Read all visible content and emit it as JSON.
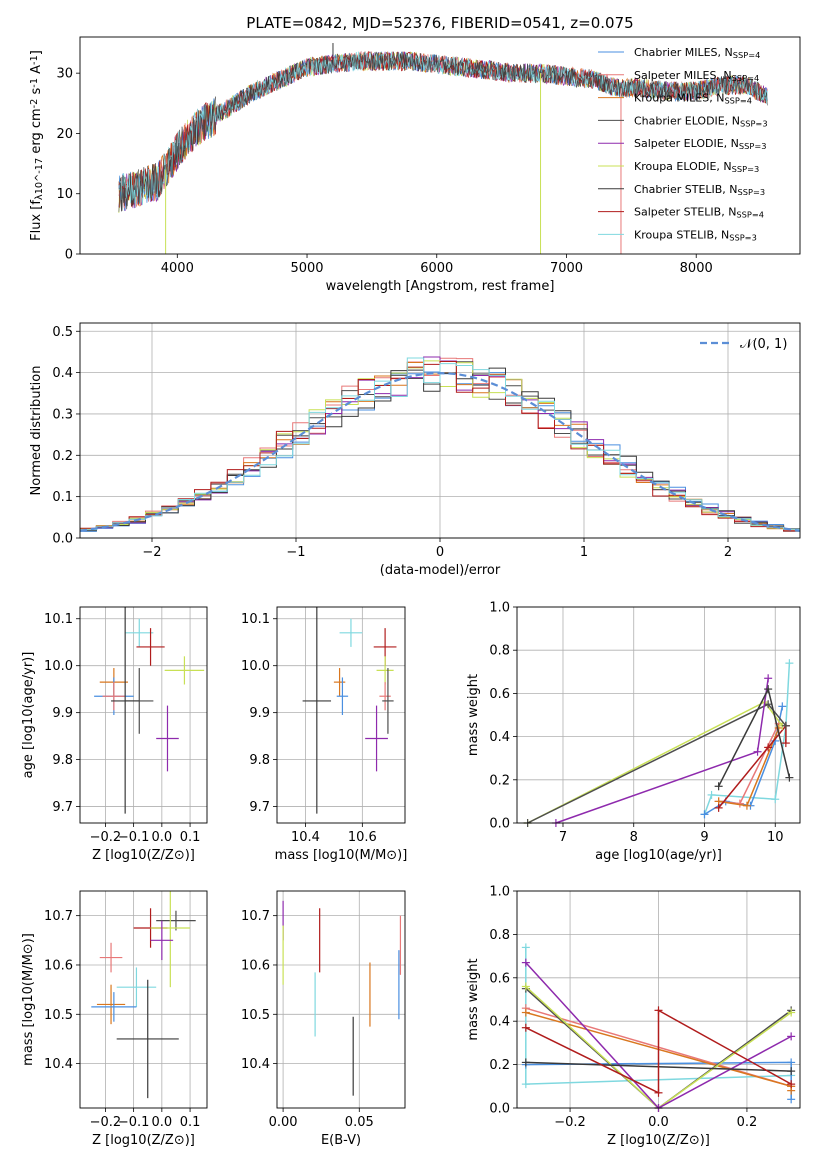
{
  "figure": {
    "title": "PLATE=0842, MJD=52376, FIBERID=0541, z=0.075"
  },
  "colors": {
    "Chabrier MILES": "#4a8fe0",
    "Salpeter MILES": "#e87878",
    "Kroupa MILES": "#d9771f",
    "Chabrier ELODIE": "#4e4e4e",
    "Salpeter ELODIE": "#8e2aad",
    "Kroupa ELODIE": "#c8e055",
    "Chabrier STELIB": "#3a3a3a",
    "Salpeter STELIB": "#b01c1c",
    "Kroupa STELIB": "#7fd8df"
  },
  "chart_data": [
    {
      "id": "spectrum",
      "type": "line",
      "title": "PLATE=0842, MJD=52376, FIBERID=0541, z=0.075",
      "xlabel": "wavelength [Angstrom, rest frame]",
      "ylabel": "Flux [f_λ10^-17 erg cm^-2 s^-1 A^-1]",
      "xlim": [
        3250,
        8800
      ],
      "ylim": [
        0,
        36
      ],
      "xticks": [
        4000,
        5000,
        6000,
        7000,
        8000
      ],
      "yticks": [
        0,
        10,
        20,
        30
      ],
      "grid": false,
      "legend_position": "upper right",
      "legend": [
        {
          "name": "Chabrier MILES",
          "nssp": "4"
        },
        {
          "name": "Salpeter MILES",
          "nssp": "4"
        },
        {
          "name": "Kroupa MILES",
          "nssp": "4"
        },
        {
          "name": "Chabrier ELODIE",
          "nssp": "3"
        },
        {
          "name": "Salpeter ELODIE",
          "nssp": "3"
        },
        {
          "name": "Kroupa ELODIE",
          "nssp": "3"
        },
        {
          "name": "Chabrier STELIB",
          "nssp": "3"
        },
        {
          "name": "Salpeter STELIB",
          "nssp": "4"
        },
        {
          "name": "Kroupa STELIB",
          "nssp": "3"
        }
      ],
      "continuum": {
        "x": [
          3550,
          3700,
          3850,
          4000,
          4150,
          4300,
          4450,
          4600,
          4800,
          5000,
          5200,
          5400,
          5600,
          5800,
          6000,
          6200,
          6400,
          6600,
          6800,
          7000,
          7200,
          7400,
          7600,
          7800,
          8000,
          8200,
          8400,
          8550
        ],
        "y": [
          10,
          11,
          12,
          17,
          21,
          23,
          25,
          27,
          29,
          31,
          31.5,
          32,
          32,
          32,
          31.5,
          31,
          30.5,
          30,
          30,
          29.5,
          29,
          27.5,
          27.5,
          27,
          27,
          28,
          28,
          26
        ]
      },
      "spikes": [
        {
          "x": 5200,
          "y": 35
        },
        {
          "x": 3910,
          "y": 0
        },
        {
          "x": 6800,
          "y": 0
        },
        {
          "x": 7420,
          "y": 0
        }
      ]
    },
    {
      "id": "residuals",
      "type": "line",
      "xlabel": "(data-model)/error",
      "ylabel": "Normed distribution",
      "xlim": [
        -2.5,
        2.5
      ],
      "ylim": [
        0,
        0.52
      ],
      "xticks": [
        -2,
        -1,
        0,
        1,
        2
      ],
      "yticks": [
        0.0,
        0.1,
        0.2,
        0.3,
        0.4,
        0.5
      ],
      "grid": true,
      "legend_position": "upper right",
      "reference_label": "𝒩(0, 1)",
      "histogram_range": [
        -2.5,
        2.5
      ],
      "histogram_bin_count": 44,
      "histogram_spread": [
        0.05,
        -0.03,
        0.02,
        -0.04,
        0.03,
        -0.02,
        0.04,
        -0.05,
        0.0
      ]
    },
    {
      "id": "age-vs-Z",
      "type": "scatter",
      "xlabel": "Z [log10(Z/Z⊙)]",
      "ylabel": "age  [log10(age/yr)]",
      "xlim": [
        -0.29,
        0.16
      ],
      "ylim": [
        9.665,
        10.125
      ],
      "xticks": [
        -0.2,
        -0.1,
        0.0,
        0.1
      ],
      "yticks": [
        9.7,
        9.8,
        9.9,
        10.0,
        10.1
      ],
      "grid": true,
      "points": [
        {
          "series": "Kroupa STELIB",
          "x": -0.08,
          "xerr": 0.05,
          "y": 10.07,
          "yerr": 0.03
        },
        {
          "series": "Salpeter STELIB",
          "x": -0.04,
          "xerr": 0.05,
          "y": 10.04,
          "yerr": 0.04
        },
        {
          "series": "Kroupa ELODIE",
          "x": 0.08,
          "xerr": 0.07,
          "y": 9.99,
          "yerr": 0.03
        },
        {
          "series": "Kroupa MILES",
          "x": -0.17,
          "xerr": 0.05,
          "y": 9.965,
          "yerr": 0.03
        },
        {
          "series": "Chabrier MILES",
          "x": -0.17,
          "xerr": 0.07,
          "y": 9.935,
          "yerr": 0.04
        },
        {
          "series": "Salpeter MILES",
          "x": -0.17,
          "xerr": 0.04,
          "y": 9.935,
          "yerr": 0.03
        },
        {
          "series": "Chabrier ELODIE",
          "x": -0.08,
          "xerr": 0.05,
          "y": 9.925,
          "yerr": 0.07
        },
        {
          "series": "Chabrier STELIB",
          "x": -0.13,
          "xerr": 0.05,
          "y": 9.925,
          "yerr": 0.24
        },
        {
          "series": "Salpeter ELODIE",
          "x": 0.02,
          "xerr": 0.04,
          "y": 9.845,
          "yerr": 0.07
        }
      ]
    },
    {
      "id": "age-vs-mass",
      "type": "scatter",
      "xlabel": "mass [log10(M/M⊙)]",
      "ylabel": "",
      "xlim": [
        10.3,
        10.75
      ],
      "ylim": [
        9.665,
        10.125
      ],
      "xticks": [
        10.4,
        10.6
      ],
      "yticks": [
        9.7,
        9.8,
        9.9,
        10.0,
        10.1
      ],
      "grid": true,
      "points": [
        {
          "series": "Kroupa STELIB",
          "x": 10.56,
          "xerr": 0.04,
          "y": 10.07,
          "yerr": 0.03
        },
        {
          "series": "Salpeter STELIB",
          "x": 10.68,
          "xerr": 0.04,
          "y": 10.04,
          "yerr": 0.04
        },
        {
          "series": "Kroupa ELODIE",
          "x": 10.68,
          "xerr": 0.03,
          "y": 9.99,
          "yerr": 0.03
        },
        {
          "series": "Kroupa MILES",
          "x": 10.52,
          "xerr": 0.02,
          "y": 9.965,
          "yerr": 0.03
        },
        {
          "series": "Chabrier MILES",
          "x": 10.53,
          "xerr": 0.02,
          "y": 9.935,
          "yerr": 0.04
        },
        {
          "series": "Salpeter MILES",
          "x": 10.68,
          "xerr": 0.02,
          "y": 9.935,
          "yerr": 0.03
        },
        {
          "series": "Chabrier ELODIE",
          "x": 10.69,
          "xerr": 0.02,
          "y": 9.925,
          "yerr": 0.07
        },
        {
          "series": "Chabrier STELIB",
          "x": 10.44,
          "xerr": 0.05,
          "y": 9.925,
          "yerr": 0.24
        },
        {
          "series": "Salpeter ELODIE",
          "x": 10.65,
          "xerr": 0.04,
          "y": 9.845,
          "yerr": 0.07
        }
      ]
    },
    {
      "id": "mass-weight-vs-age",
      "type": "line",
      "xlabel": "age  [log10(age/yr)]",
      "ylabel": "mass weight",
      "xlim": [
        6.35,
        10.35
      ],
      "ylim": [
        0,
        1
      ],
      "xticks": [
        7,
        8,
        9,
        10
      ],
      "yticks": [
        0.0,
        0.2,
        0.4,
        0.6,
        0.8,
        1.0
      ],
      "grid": true,
      "series": [
        {
          "name": "Kroupa STELIB",
          "x": [
            9.0,
            9.1,
            10.0,
            10.15,
            10.2
          ],
          "y": [
            0.04,
            0.13,
            0.11,
            0.45,
            0.74
          ]
        },
        {
          "name": "Chabrier MILES",
          "x": [
            9.0,
            9.3,
            9.65,
            10.0,
            10.1
          ],
          "y": [
            0.04,
            0.1,
            0.08,
            0.38,
            0.54
          ]
        },
        {
          "name": "Salpeter MILES",
          "x": [
            9.2,
            9.5,
            10.05
          ],
          "y": [
            0.1,
            0.09,
            0.46
          ]
        },
        {
          "name": "Kroupa MILES",
          "x": [
            9.2,
            9.6,
            10.05
          ],
          "y": [
            0.1,
            0.08,
            0.44
          ]
        },
        {
          "name": "Salpeter STELIB",
          "x": [
            9.2,
            9.9,
            10.15,
            10.15
          ],
          "y": [
            0.07,
            0.35,
            0.45,
            0.37
          ]
        },
        {
          "name": "Kroupa ELODIE",
          "x": [
            6.5,
            9.85,
            10.1
          ],
          "y": [
            0.0,
            0.56,
            0.45
          ]
        },
        {
          "name": "Chabrier ELODIE",
          "x": [
            6.5,
            9.9,
            10.15
          ],
          "y": [
            0.0,
            0.55,
            0.45
          ]
        },
        {
          "name": "Salpeter ELODIE",
          "x": [
            6.9,
            9.75,
            9.9
          ],
          "y": [
            0.0,
            0.33,
            0.67
          ]
        },
        {
          "name": "Chabrier STELIB",
          "x": [
            9.2,
            9.9,
            10.2
          ],
          "y": [
            0.17,
            0.62,
            0.21
          ]
        }
      ]
    },
    {
      "id": "mass-vs-Z",
      "type": "scatter",
      "xlabel": "Z [log10(Z/Z⊙)]",
      "ylabel": "mass [log10(M/M⊙)]",
      "xlim": [
        -0.29,
        0.16
      ],
      "ylim": [
        10.31,
        10.75
      ],
      "xticks": [
        -0.2,
        -0.1,
        0.0,
        0.1
      ],
      "yticks": [
        10.4,
        10.5,
        10.6,
        10.7
      ],
      "grid": true,
      "points": [
        {
          "series": "Chabrier ELODIE",
          "x": 0.05,
          "xerr": 0.07,
          "y": 10.69,
          "yerr": 0.02
        },
        {
          "series": "Salpeter STELIB",
          "x": -0.04,
          "xerr": 0.06,
          "y": 10.675,
          "yerr": 0.04
        },
        {
          "series": "Kroupa ELODIE",
          "x": 0.03,
          "xerr": 0.07,
          "y": 10.675,
          "yerr": 0.12
        },
        {
          "series": "Salpeter ELODIE",
          "x": 0.0,
          "xerr": 0.04,
          "y": 10.65,
          "yerr": 0.04
        },
        {
          "series": "Salpeter MILES",
          "x": -0.18,
          "xerr": 0.04,
          "y": 10.615,
          "yerr": 0.03
        },
        {
          "series": "Kroupa STELIB",
          "x": -0.09,
          "xerr": 0.07,
          "y": 10.555,
          "yerr": 0.04
        },
        {
          "series": "Kroupa MILES",
          "x": -0.18,
          "xerr": 0.05,
          "y": 10.52,
          "yerr": 0.04
        },
        {
          "series": "Chabrier MILES",
          "x": -0.17,
          "xerr": 0.08,
          "y": 10.515,
          "yerr": 0.03
        },
        {
          "series": "Chabrier STELIB",
          "x": -0.05,
          "xerr": 0.11,
          "y": 10.45,
          "yerr": 0.12
        }
      ]
    },
    {
      "id": "mass-vs-ebv",
      "type": "scatter",
      "xlabel": "E(B-V)",
      "ylabel": "",
      "xlim": [
        -0.004,
        0.08
      ],
      "ylim": [
        10.31,
        10.75
      ],
      "xticks": [
        0.0,
        0.05
      ],
      "yticks": [
        10.4,
        10.5,
        10.6,
        10.7
      ],
      "grid": true,
      "points": [
        {
          "series": "Salpeter ELODIE",
          "x": 0.0,
          "y": 10.69,
          "yerr": 0.04
        },
        {
          "series": "Kroupa ELODIE",
          "x": 0.0,
          "y": 10.62,
          "yerr": 0.06
        },
        {
          "series": "Salpeter STELIB",
          "x": 0.024,
          "y": 10.65,
          "yerr": 0.065
        },
        {
          "series": "Salpeter MILES",
          "x": 0.077,
          "y": 10.64,
          "yerr": 0.06
        },
        {
          "series": "Kroupa MILES",
          "x": 0.057,
          "y": 10.54,
          "yerr": 0.065
        },
        {
          "series": "Chabrier MILES",
          "x": 0.076,
          "y": 10.56,
          "yerr": 0.07
        },
        {
          "series": "Kroupa STELIB",
          "x": 0.021,
          "y": 10.52,
          "yerr": 0.065
        },
        {
          "series": "Chabrier STELIB",
          "x": 0.046,
          "y": 10.415,
          "yerr": 0.08
        }
      ]
    },
    {
      "id": "mass-weight-vs-Z",
      "type": "line",
      "xlabel": "Z [log10(Z/Z⊙)]",
      "ylabel": "mass weight",
      "xlim": [
        -0.32,
        0.32
      ],
      "ylim": [
        0,
        1
      ],
      "xticks": [
        -0.2,
        0.0,
        0.2
      ],
      "yticks": [
        0.0,
        0.2,
        0.4,
        0.6,
        0.8,
        1.0
      ],
      "grid": true,
      "series": [
        {
          "name": "Kroupa STELIB",
          "x": [
            -0.3,
            -0.3,
            0.3
          ],
          "y": [
            0.74,
            0.11,
            0.15
          ]
        },
        {
          "name": "Chabrier MILES",
          "x": [
            -0.3,
            0.3,
            0.3
          ],
          "y": [
            0.2,
            0.21,
            0.04
          ]
        },
        {
          "name": "Salpeter MILES",
          "x": [
            -0.3,
            0.3
          ],
          "y": [
            0.46,
            0.1
          ]
        },
        {
          "name": "Kroupa MILES",
          "x": [
            -0.3,
            0.3,
            0.3
          ],
          "y": [
            0.44,
            0.1,
            0.08
          ]
        },
        {
          "name": "Chabrier ELODIE",
          "x": [
            -0.3,
            0.0,
            0.3
          ],
          "y": [
            0.55,
            0.0,
            0.45
          ]
        },
        {
          "name": "Kroupa ELODIE",
          "x": [
            -0.3,
            0.0,
            0.3
          ],
          "y": [
            0.56,
            0.0,
            0.44
          ]
        },
        {
          "name": "Salpeter ELODIE",
          "x": [
            -0.3,
            0.0,
            0.3
          ],
          "y": [
            0.67,
            0.0,
            0.33
          ]
        },
        {
          "name": "Chabrier STELIB",
          "x": [
            -0.3,
            0.3
          ],
          "y": [
            0.21,
            0.17
          ]
        },
        {
          "name": "Salpeter STELIB",
          "x": [
            -0.3,
            0.0,
            0.0,
            0.3
          ],
          "y": [
            0.37,
            0.07,
            0.45,
            0.11
          ]
        }
      ]
    }
  ]
}
